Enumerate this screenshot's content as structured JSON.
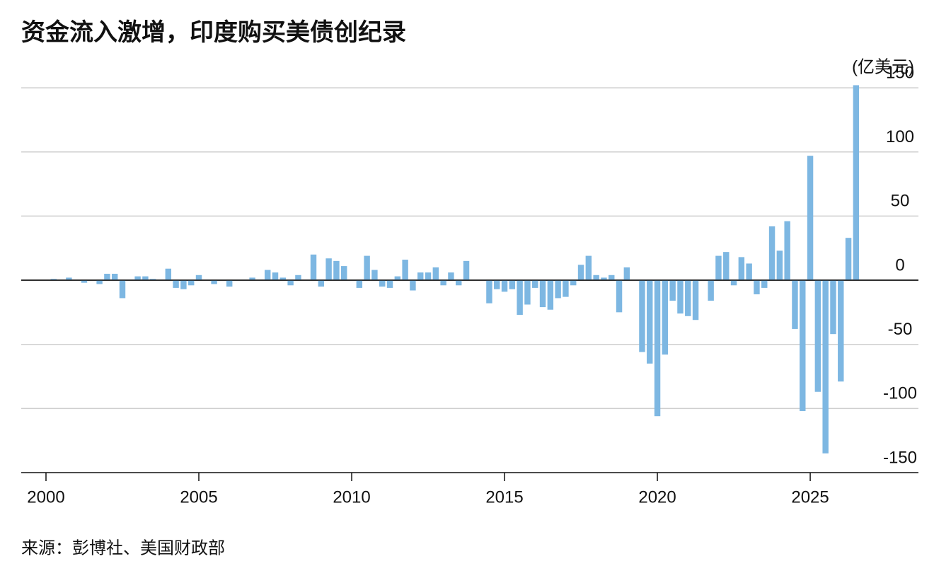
{
  "chart_data": {
    "type": "bar",
    "title": "资金流入激增，印度购买美债创纪录",
    "unit_label": "(亿美元)",
    "source": "来源：彭博社、美国财政部",
    "color": "#7db7e2",
    "x": [
      2000.25,
      2000.5,
      2000.75,
      2001,
      2001.25,
      2001.5,
      2001.75,
      2002,
      2002.25,
      2002.5,
      2002.75,
      2003,
      2003.25,
      2003.5,
      2003.75,
      2004,
      2004.25,
      2004.5,
      2004.75,
      2005,
      2005.25,
      2005.5,
      2005.75,
      2006,
      2006.25,
      2006.5,
      2006.75,
      2007,
      2007.25,
      2007.5,
      2007.75,
      2008,
      2008.25,
      2008.5,
      2008.75,
      2009,
      2009.25,
      2009.5,
      2009.75,
      2010,
      2010.25,
      2010.5,
      2010.75,
      2011,
      2011.25,
      2011.5,
      2011.75,
      2012,
      2012.25,
      2012.5,
      2012.75,
      2013,
      2013.25,
      2013.5,
      2013.75,
      2014,
      2014.25,
      2014.5,
      2014.75,
      2015,
      2015.25,
      2015.5,
      2015.75,
      2016,
      2016.25,
      2016.5,
      2016.75,
      2017,
      2017.25,
      2017.5,
      2017.75,
      2018,
      2018.25,
      2018.5,
      2018.75,
      2019,
      2019.25,
      2019.5,
      2019.75,
      2020,
      2020.25,
      2020.5,
      2020.75,
      2021,
      2021.25,
      2021.5,
      2021.75,
      2022,
      2022.25,
      2022.5,
      2022.75,
      2023,
      2023.25,
      2023.5,
      2023.75,
      2024,
      2024.25,
      2024.5,
      2024.75,
      2025,
      2025.25,
      2025.5,
      2025.75,
      2026,
      2026.25,
      2026.5
    ],
    "values": [
      1,
      0,
      2,
      0,
      -2,
      0,
      -3,
      5,
      5,
      -14,
      0,
      3,
      3,
      1,
      0,
      9,
      -6,
      -7,
      -4,
      4,
      0,
      -3,
      0,
      -5,
      0,
      0,
      2,
      0,
      8,
      6,
      2,
      -4,
      4,
      0,
      20,
      -5,
      17,
      15,
      11,
      0,
      -6,
      19,
      8,
      -5,
      -6,
      3,
      16,
      -8,
      6,
      6,
      10,
      -4,
      6,
      -4,
      15,
      0,
      0,
      -18,
      -7,
      -9,
      -7,
      -27,
      -19,
      -6,
      -21,
      -23,
      -14,
      -13,
      -4,
      12,
      19,
      4,
      2,
      4,
      -25,
      10,
      0,
      -56,
      -65,
      -106,
      -58,
      -16,
      -26,
      -28,
      -31,
      0,
      -16,
      19,
      22,
      -4,
      18,
      13,
      -11,
      -6,
      42,
      23,
      46,
      -38,
      -102,
      97,
      -87,
      -135,
      -42,
      -79,
      33,
      152
    ],
    "xlim": [
      1999.19,
      2028.54
    ],
    "ylim": [
      -150,
      155
    ],
    "xticks": [
      2000,
      2005,
      2010,
      2015,
      2020,
      2025
    ],
    "yticks": [
      -150,
      -100,
      -50,
      0,
      50,
      100,
      150
    ],
    "grid": true
  }
}
